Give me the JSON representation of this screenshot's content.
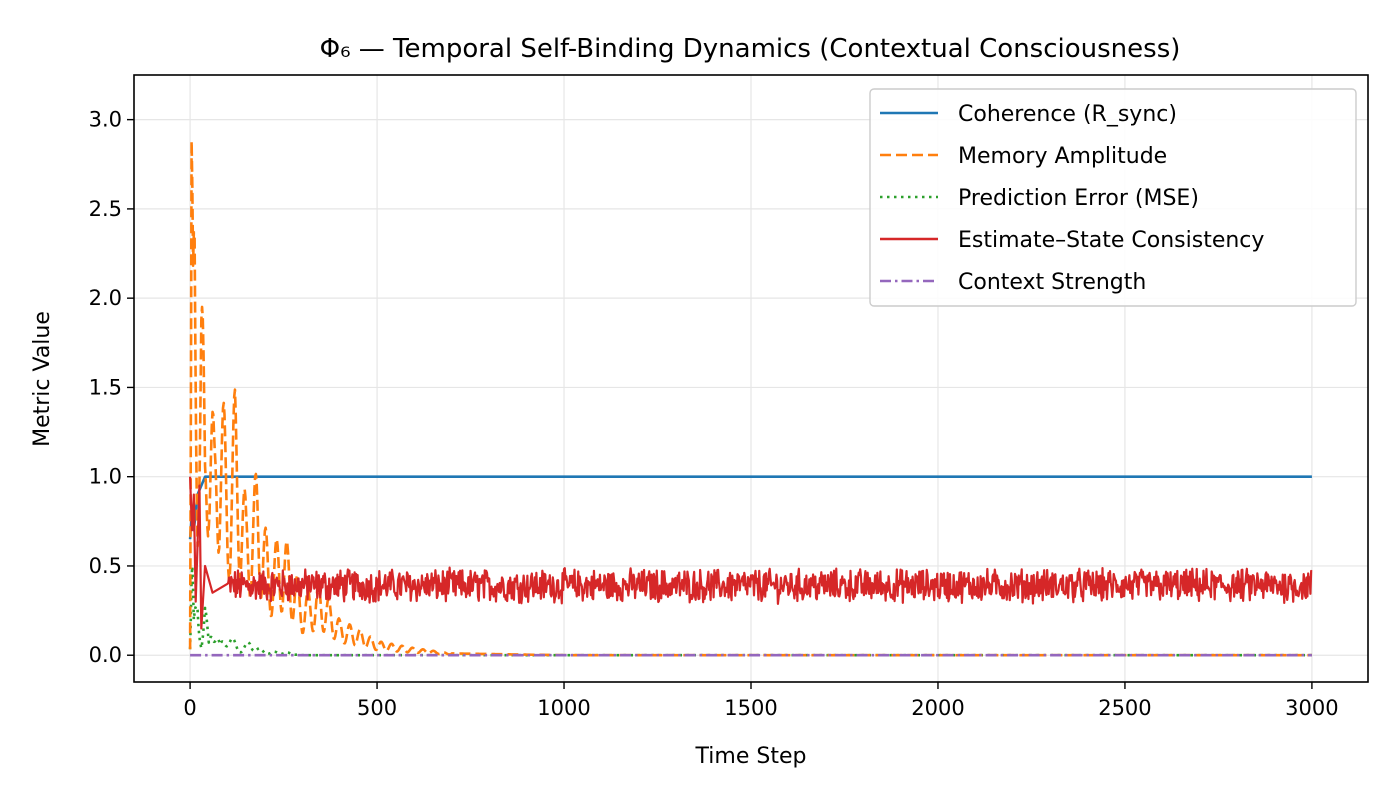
{
  "chart_data": {
    "type": "line",
    "title": "Φ₆ — Temporal Self-Binding Dynamics (Contextual Consciousness)",
    "xlabel": "Time Step",
    "ylabel": "Metric Value",
    "xlim": [
      -150,
      3150
    ],
    "ylim": [
      -0.15,
      3.25
    ],
    "xticks": [
      0,
      500,
      1000,
      1500,
      2000,
      2500,
      3000
    ],
    "xtick_labels": [
      "0",
      "500",
      "1000",
      "1500",
      "2000",
      "2500",
      "3000"
    ],
    "yticks": [
      0.0,
      0.5,
      1.0,
      1.5,
      2.0,
      2.5,
      3.0
    ],
    "ytick_labels": [
      "0.0",
      "0.5",
      "1.0",
      "1.5",
      "2.0",
      "2.5",
      "3.0"
    ],
    "grid": true,
    "legend_position": "upper right",
    "series": [
      {
        "name": "Coherence (R_sync)",
        "color": "#1f77b4",
        "style": "solid",
        "points": [
          [
            0,
            0.65
          ],
          [
            5,
            0.8
          ],
          [
            10,
            0.7
          ],
          [
            20,
            0.9
          ],
          [
            40,
            1.0
          ],
          [
            80,
            1.0
          ],
          [
            120,
            1.0
          ],
          [
            3000,
            1.0
          ]
        ]
      },
      {
        "name": "Memory Amplitude",
        "color": "#ff7f0e",
        "style": "dashed",
        "points": [
          [
            0,
            0.05
          ],
          [
            4,
            3.1
          ],
          [
            8,
            2.2
          ],
          [
            12,
            2.9
          ],
          [
            20,
            1.7
          ],
          [
            30,
            2.3
          ],
          [
            40,
            1.3
          ],
          [
            50,
            2.0
          ],
          [
            65,
            1.2
          ],
          [
            80,
            1.75
          ],
          [
            100,
            1.1
          ],
          [
            120,
            1.5
          ],
          [
            150,
            0.85
          ],
          [
            180,
            1.05
          ],
          [
            210,
            0.6
          ],
          [
            250,
            0.7
          ],
          [
            300,
            0.35
          ],
          [
            350,
            0.4
          ],
          [
            400,
            0.2
          ],
          [
            450,
            0.15
          ],
          [
            500,
            0.08
          ],
          [
            600,
            0.04
          ],
          [
            700,
            0.01
          ],
          [
            1000,
            0.0
          ],
          [
            3000,
            0.0
          ]
        ]
      },
      {
        "name": "Prediction Error (MSE)",
        "color": "#2ca02c",
        "style": "dotted",
        "points": [
          [
            0,
            0.05
          ],
          [
            5,
            0.6
          ],
          [
            10,
            0.2
          ],
          [
            20,
            0.45
          ],
          [
            30,
            0.1
          ],
          [
            40,
            0.3
          ],
          [
            50,
            0.08
          ],
          [
            60,
            0.25
          ],
          [
            80,
            0.06
          ],
          [
            100,
            0.15
          ],
          [
            130,
            0.04
          ],
          [
            160,
            0.08
          ],
          [
            200,
            0.02
          ],
          [
            250,
            0.02
          ],
          [
            300,
            0.0
          ],
          [
            3000,
            0.0
          ]
        ]
      },
      {
        "name": "Estimate–State Consistency",
        "color": "#d62728",
        "style": "solid",
        "mean": 0.39,
        "noise_amplitude": 0.08,
        "points": [
          [
            0,
            1.0
          ],
          [
            5,
            0.7
          ],
          [
            10,
            0.9
          ],
          [
            15,
            0.3
          ],
          [
            25,
            0.95
          ],
          [
            30,
            0.15
          ],
          [
            40,
            0.5
          ],
          [
            60,
            0.35
          ],
          [
            100,
            0.4
          ],
          [
            3000,
            0.39
          ]
        ]
      },
      {
        "name": "Context Strength",
        "color": "#9467bd",
        "style": "dashdot",
        "points": [
          [
            0,
            0.0
          ],
          [
            3000,
            0.0
          ]
        ]
      }
    ]
  }
}
